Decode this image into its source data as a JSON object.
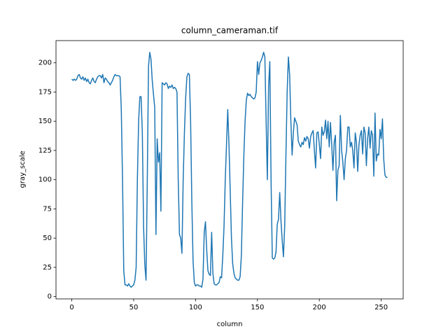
{
  "chart_data": {
    "type": "line",
    "title": "column_cameraman.tif",
    "xlabel": "column",
    "ylabel": "gray_scale",
    "x": [
      0,
      1,
      2,
      3,
      4,
      5,
      6,
      7,
      8,
      9,
      10,
      11,
      12,
      13,
      14,
      15,
      16,
      17,
      18,
      19,
      20,
      21,
      22,
      23,
      24,
      25,
      26,
      27,
      28,
      29,
      30,
      31,
      32,
      33,
      34,
      35,
      36,
      37,
      38,
      39,
      40,
      41,
      42,
      43,
      44,
      45,
      46,
      47,
      48,
      49,
      50,
      51,
      52,
      53,
      54,
      55,
      56,
      57,
      58,
      59,
      60,
      61,
      62,
      63,
      64,
      65,
      66,
      67,
      68,
      69,
      70,
      71,
      72,
      73,
      74,
      75,
      76,
      77,
      78,
      79,
      80,
      81,
      82,
      83,
      84,
      85,
      86,
      87,
      88,
      89,
      90,
      91,
      92,
      93,
      94,
      95,
      96,
      97,
      98,
      99,
      100,
      101,
      102,
      103,
      104,
      105,
      106,
      107,
      108,
      109,
      110,
      111,
      112,
      113,
      114,
      115,
      116,
      117,
      118,
      119,
      120,
      121,
      122,
      123,
      124,
      125,
      126,
      127,
      128,
      129,
      130,
      131,
      132,
      133,
      134,
      135,
      136,
      137,
      138,
      139,
      140,
      141,
      142,
      143,
      144,
      145,
      146,
      147,
      148,
      149,
      150,
      151,
      152,
      153,
      154,
      155,
      156,
      157,
      158,
      159,
      160,
      161,
      162,
      163,
      164,
      165,
      166,
      167,
      168,
      169,
      170,
      171,
      172,
      173,
      174,
      175,
      176,
      177,
      178,
      179,
      180,
      181,
      182,
      183,
      184,
      185,
      186,
      187,
      188,
      189,
      190,
      191,
      192,
      193,
      194,
      195,
      196,
      197,
      198,
      199,
      200,
      201,
      202,
      203,
      204,
      205,
      206,
      207,
      208,
      209,
      210,
      211,
      212,
      213,
      214,
      215,
      216,
      217,
      218,
      219,
      220,
      221,
      222,
      223,
      224,
      225,
      226,
      227,
      228,
      229,
      230,
      231,
      232,
      233,
      234,
      235,
      236,
      237,
      238,
      239,
      240,
      241,
      242,
      243,
      244,
      245,
      246,
      247,
      248,
      249,
      250,
      251,
      252,
      253,
      254,
      255
    ],
    "series": [
      {
        "color": "#1f77b4",
        "values": [
          186,
          185,
          186,
          185,
          186,
          189,
          190,
          187,
          186,
          188,
          185,
          187,
          184,
          186,
          183,
          182,
          185,
          187,
          184,
          183,
          186,
          188,
          189,
          189,
          187,
          190,
          183,
          187,
          186,
          184,
          183,
          181,
          183,
          185,
          188,
          190,
          189,
          189,
          189,
          188,
          160,
          100,
          22,
          10,
          10,
          9,
          11,
          9,
          8,
          9,
          10,
          14,
          25,
          100,
          150,
          171,
          171,
          140,
          60,
          27,
          14,
          100,
          197,
          209,
          203,
          185,
          173,
          162,
          53,
          135,
          115,
          123,
          73,
          183,
          182,
          181,
          183,
          182,
          178,
          180,
          179,
          181,
          178,
          179,
          178,
          175,
          100,
          53,
          50,
          37,
          100,
          140,
          170,
          188,
          191,
          190,
          150,
          80,
          30,
          12,
          9,
          10,
          10,
          9,
          9,
          8,
          15,
          55,
          64,
          40,
          22,
          19,
          18,
          55,
          20,
          11,
          10,
          10,
          11,
          12,
          17,
          16,
          35,
          60,
          100,
          130,
          160,
          130,
          90,
          50,
          28,
          20,
          16,
          15,
          14,
          14,
          17,
          35,
          80,
          120,
          150,
          168,
          174,
          172,
          173,
          171,
          170,
          169,
          170,
          175,
          201,
          190,
          200,
          202,
          205,
          209,
          205,
          150,
          100,
          180,
          201,
          100,
          33,
          32,
          33,
          38,
          62,
          66,
          89,
          65,
          48,
          34,
          60,
          120,
          175,
          205,
          190,
          150,
          121,
          140,
          153,
          150,
          147,
          133,
          130,
          128,
          132,
          130,
          136,
          133,
          137,
          135,
          127,
          137,
          140,
          142,
          125,
          110,
          140,
          141,
          130,
          118,
          145,
          138,
          141,
          151,
          135,
          150,
          128,
          149,
          130,
          108,
          132,
          138,
          82,
          108,
          112,
          155,
          125,
          115,
          100,
          118,
          125,
          145,
          145,
          128,
          132,
          125,
          110,
          140,
          132,
          107,
          130,
          138,
          142,
          122,
          145,
          140,
          112,
          135,
          145,
          127,
          142,
          138,
          103,
          157,
          116,
          122,
          121,
          143,
          135,
          152,
          118,
          104,
          102,
          102
        ]
      }
    ],
    "xlim": [
      -12.75,
      267.75
    ],
    "ylim": [
      -2,
      219
    ],
    "xticks": [
      0,
      50,
      100,
      150,
      200,
      250
    ],
    "yticks": [
      0,
      25,
      50,
      75,
      100,
      125,
      150,
      175,
      200
    ]
  }
}
